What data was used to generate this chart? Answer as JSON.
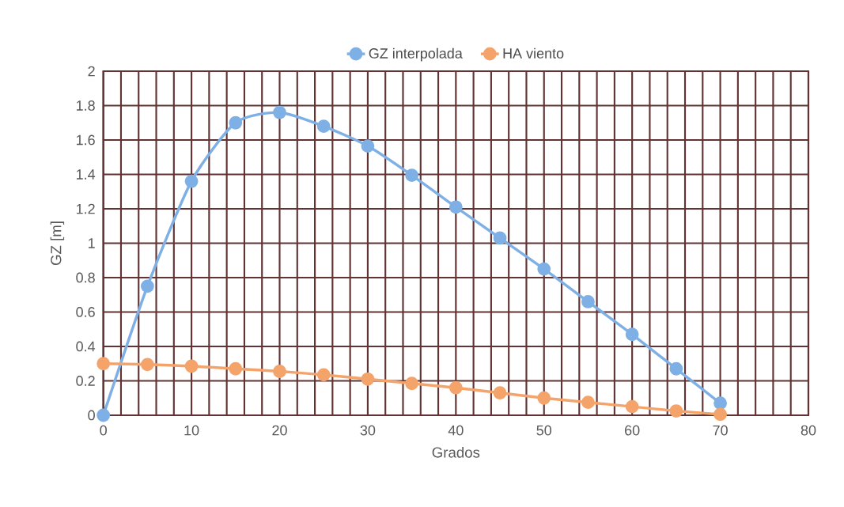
{
  "chart_data": {
    "type": "line",
    "xlabel": "Grados",
    "ylabel": "GZ [m]",
    "x": [
      0,
      5,
      10,
      15,
      20,
      25,
      30,
      35,
      40,
      45,
      50,
      55,
      60,
      65,
      70
    ],
    "series": [
      {
        "name": "GZ interpolada",
        "color": "#7eb0e6",
        "values": [
          0,
          0.75,
          1.36,
          1.7,
          1.76,
          1.68,
          1.565,
          1.395,
          1.21,
          1.03,
          0.85,
          0.66,
          0.47,
          0.27,
          0.07
        ]
      },
      {
        "name": "HA viento",
        "color": "#f4a46a",
        "values": [
          0.3,
          0.295,
          0.285,
          0.27,
          0.255,
          0.235,
          0.21,
          0.185,
          0.16,
          0.13,
          0.1,
          0.075,
          0.05,
          0.025,
          0.005
        ]
      }
    ],
    "xlim": [
      0,
      80
    ],
    "xticks": [
      0,
      {
        "value": 2,
        "label": null
      },
      {
        "value": 4,
        "label": null
      },
      {
        "value": 6,
        "label": null
      },
      {
        "value": 8,
        "label": null
      },
      10,
      {
        "value": 12,
        "label": null
      },
      {
        "value": 14,
        "label": null
      },
      {
        "value": 16,
        "label": null
      },
      {
        "value": 18,
        "label": null
      },
      20,
      {
        "value": 22,
        "label": null
      },
      {
        "value": 24,
        "label": null
      },
      {
        "value": 26,
        "label": null
      },
      {
        "value": 28,
        "label": null
      },
      30,
      {
        "value": 32,
        "label": null
      },
      {
        "value": 34,
        "label": null
      },
      {
        "value": 36,
        "label": null
      },
      {
        "value": 38,
        "label": null
      },
      40,
      {
        "value": 42,
        "label": null
      },
      {
        "value": 44,
        "label": null
      },
      {
        "value": 46,
        "label": null
      },
      {
        "value": 48,
        "label": null
      },
      50,
      {
        "value": 52,
        "label": null
      },
      {
        "value": 54,
        "label": null
      },
      {
        "value": 56,
        "label": null
      },
      {
        "value": 58,
        "label": null
      },
      60,
      {
        "value": 62,
        "label": null
      },
      {
        "value": 64,
        "label": null
      },
      {
        "value": 66,
        "label": null
      },
      {
        "value": 68,
        "label": null
      },
      70,
      {
        "value": 72,
        "label": null
      },
      {
        "value": 74,
        "label": null
      },
      {
        "value": 76,
        "label": null
      },
      {
        "value": 78,
        "label": null
      },
      80
    ],
    "ylim": [
      0,
      2
    ],
    "yticks": [
      0,
      0.2,
      0.4,
      0.6,
      0.8,
      1,
      1.2,
      1.4,
      1.6,
      1.8,
      2
    ],
    "grid": true,
    "legend": "top",
    "marker": "circle",
    "line_style": "solid"
  }
}
